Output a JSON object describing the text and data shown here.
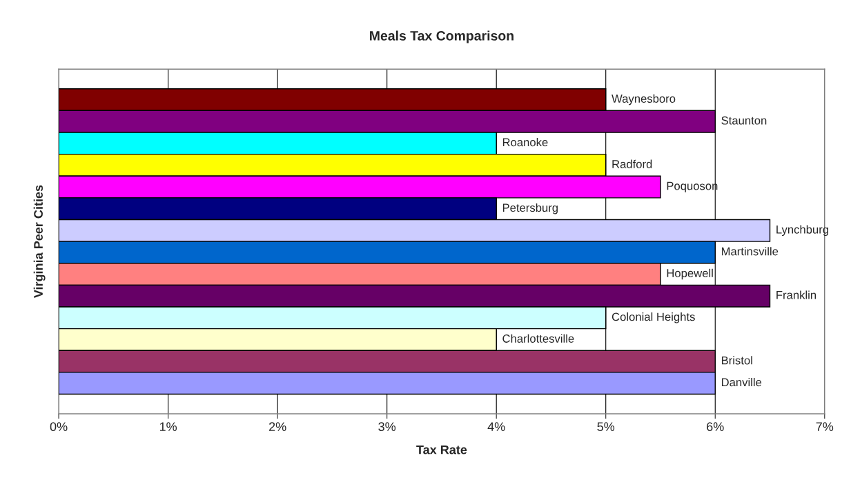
{
  "chart_data": {
    "type": "bar",
    "orientation": "horizontal",
    "title": "Meals Tax Comparison",
    "xlabel": "Tax Rate",
    "ylabel": "Virginia Peer Cities",
    "categories": [
      "Waynesboro",
      "Staunton",
      "Roanoke",
      "Radford",
      "Poquoson",
      "Petersburg",
      "Lynchburg",
      "Martinsville",
      "Hopewell",
      "Franklin",
      "Colonial Heights",
      "Charlottesville",
      "Bristol",
      "Danville"
    ],
    "values": [
      5,
      6,
      4,
      5,
      5.5,
      4,
      6.5,
      6,
      5.5,
      6.5,
      5,
      4,
      6,
      6
    ],
    "colors": [
      "#800000",
      "#800080",
      "#00ffff",
      "#ffff00",
      "#ff00ff",
      "#000080",
      "#ccccff",
      "#0066cc",
      "#ff8080",
      "#660066",
      "#ccffff",
      "#ffffcc",
      "#993366",
      "#9999ff"
    ],
    "xlim": [
      0,
      7
    ],
    "xticks": [
      {
        "value": 0,
        "label": "0%"
      },
      {
        "value": 1,
        "label": "1%"
      },
      {
        "value": 2,
        "label": "2%"
      },
      {
        "value": 3,
        "label": "3%"
      },
      {
        "value": 4,
        "label": "4%"
      },
      {
        "value": 5,
        "label": "5%"
      },
      {
        "value": 6,
        "label": "6%"
      },
      {
        "value": 7,
        "label": "7%"
      }
    ],
    "grid": "x",
    "legend": false
  }
}
